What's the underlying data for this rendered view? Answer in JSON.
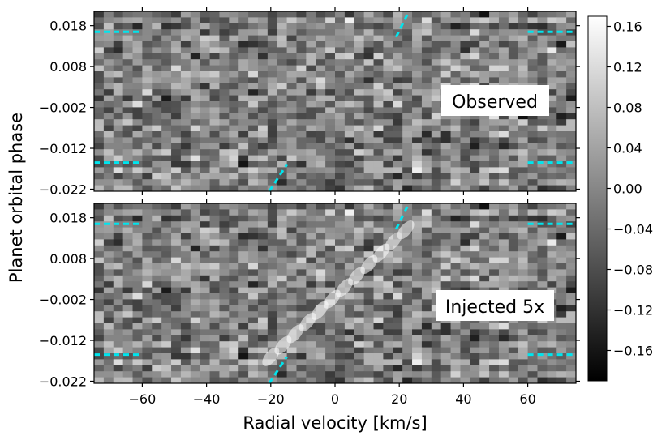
{
  "chart_data": [
    {
      "type": "heatmap",
      "title": "Observed",
      "xlabel": "Radial velocity [km/s]",
      "ylabel": "Planet orbital phase",
      "xlim": [
        -75,
        75
      ],
      "ylim": [
        -0.0225,
        0.0215
      ],
      "xticks": [
        -60,
        -40,
        -20,
        0,
        20,
        40,
        60
      ],
      "yticks": [
        0.018,
        0.008,
        -0.002,
        -0.012,
        -0.022
      ],
      "ytick_labels": [
        "0.018",
        "0.008",
        "−0.002",
        "−0.012",
        "−0.022"
      ],
      "transit_markers_phase": [
        0.0165,
        -0.0155
      ],
      "transit_marker_velocity_ranges": [
        [
          -75,
          -60
        ],
        [
          60,
          75
        ]
      ],
      "planet_track_segments": [
        {
          "phase": [
            0.0152,
            0.0215
          ],
          "velocity": [
            19,
            23
          ]
        },
        {
          "phase": [
            -0.0225,
            -0.016
          ],
          "velocity": [
            -20.5,
            -15
          ]
        }
      ]
    },
    {
      "type": "heatmap",
      "title": "Injected 5x",
      "xlabel": "Radial velocity [km/s]",
      "ylabel": "Planet orbital phase",
      "xlim": [
        -75,
        75
      ],
      "ylim": [
        -0.0225,
        0.0215
      ],
      "xticks": [
        -60,
        -40,
        -20,
        0,
        20,
        40,
        60
      ],
      "yticks": [
        0.018,
        0.008,
        -0.002,
        -0.012,
        -0.022
      ],
      "ytick_labels": [
        "0.018",
        "0.008",
        "−0.002",
        "−0.012",
        "−0.022"
      ],
      "transit_markers_phase": [
        0.0165,
        -0.0155
      ],
      "transit_marker_velocity_ranges": [
        [
          -75,
          -60
        ],
        [
          60,
          75
        ]
      ],
      "planet_track_segments": [
        {
          "phase": [
            0.0152,
            0.0215
          ],
          "velocity": [
            19,
            23
          ]
        },
        {
          "phase": [
            -0.0225,
            -0.016
          ],
          "velocity": [
            -20.5,
            -15
          ]
        }
      ],
      "injected_signal": {
        "phase_range": [
          -0.016,
          0.015
        ],
        "velocity_range": [
          -20,
          22
        ]
      }
    }
  ],
  "x_tick_labels": [
    "−60",
    "−40",
    "−20",
    "0",
    "20",
    "40",
    "60"
  ],
  "colorbar": {
    "range": [
      -0.19,
      0.17
    ],
    "ticks": [
      0.16,
      0.12,
      0.08,
      0.04,
      0.0,
      -0.04,
      -0.08,
      -0.12,
      -0.16
    ],
    "tick_labels": [
      "0.16",
      "0.12",
      "0.08",
      "0.04",
      "0.00",
      "−0.04",
      "−0.08",
      "−0.12",
      "−0.16"
    ],
    "colormap": "gray"
  },
  "colors": {
    "marker": "#00e5ee",
    "colormap_low": "#000000",
    "colormap_high": "#ffffff"
  }
}
